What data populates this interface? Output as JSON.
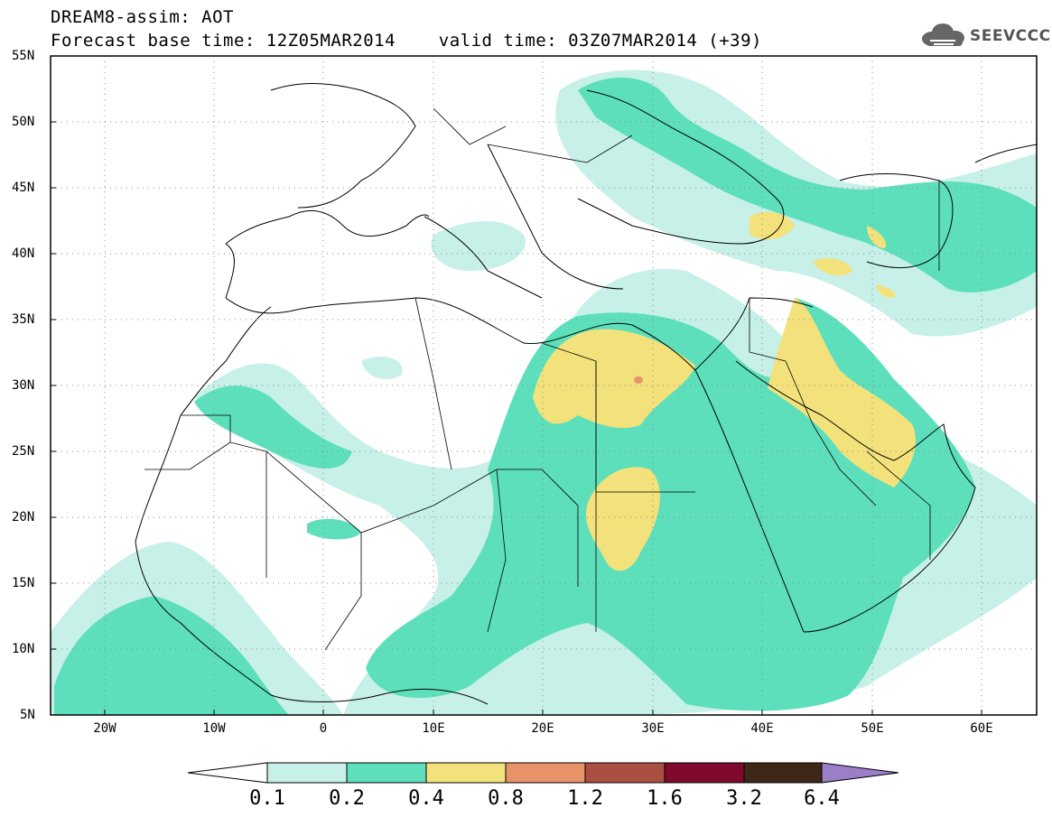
{
  "header": {
    "line1": "DREAM8-assim: AOT",
    "line2": "Forecast base time: 12Z05MAR2014    valid time: 03Z07MAR2014 (+39)"
  },
  "logo": {
    "text": "SEEVCCC",
    "icon": "cloud-icon"
  },
  "map": {
    "lon_range": [
      -25,
      65
    ],
    "lat_range": [
      5,
      55
    ],
    "lat_labels": [
      "55N",
      "50N",
      "45N",
      "40N",
      "35N",
      "30N",
      "25N",
      "20N",
      "15N",
      "10N",
      "5N"
    ],
    "lon_labels": [
      "20W",
      "10W",
      "0",
      "10E",
      "20E",
      "30E",
      "40E",
      "50E",
      "60E"
    ],
    "grid": "dotted"
  },
  "colorbar": {
    "labels": [
      "0.1",
      "0.2",
      "0.4",
      "0.8",
      "1.2",
      "1.6",
      "3.2",
      "6.4"
    ],
    "colors": [
      "#c6f0e8",
      "#5ddfbb",
      "#f3e27b",
      "#e8926a",
      "#a95043",
      "#7f0a2e",
      "#3d2817",
      "#9a7ec7"
    ]
  }
}
